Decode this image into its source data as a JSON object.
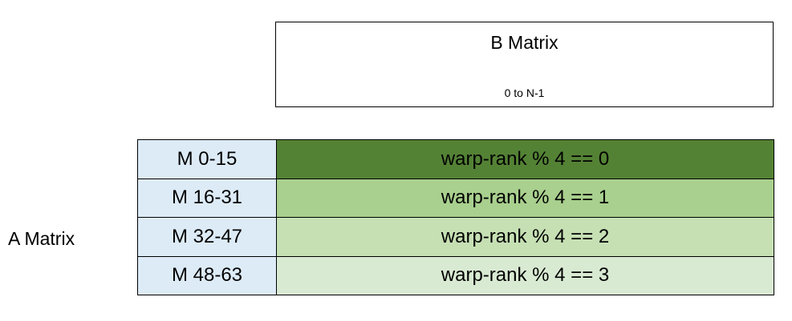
{
  "b_matrix": {
    "title": "B Matrix",
    "range": "0 to N-1"
  },
  "a_matrix": {
    "label": "A Matrix",
    "rows": [
      {
        "m_range": "M 0-15",
        "warp": "warp-rank % 4 == 0",
        "color": "#548235"
      },
      {
        "m_range": "M 16-31",
        "warp": "warp-rank % 4 == 1",
        "color": "#a9d08e"
      },
      {
        "m_range": "M 32-47",
        "warp": "warp-rank % 4 == 2",
        "color": "#c6e0b4"
      },
      {
        "m_range": "M 48-63",
        "warp": "warp-rank % 4 == 3",
        "color": "#d9ead3"
      }
    ]
  },
  "colors": {
    "m_cell_fill": "#ddebf7",
    "border": "#000000"
  }
}
